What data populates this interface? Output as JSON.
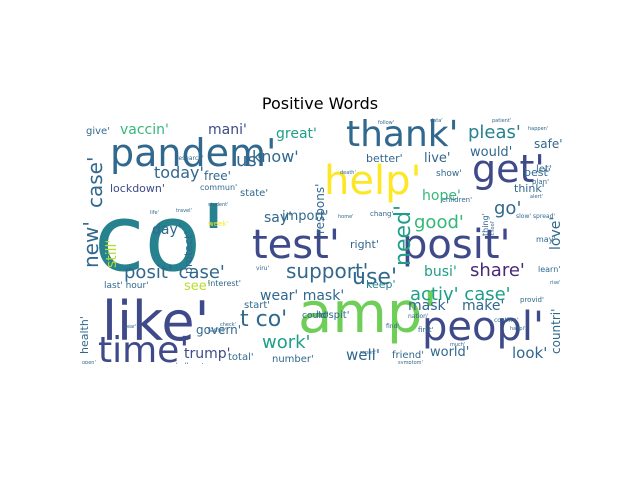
{
  "title": "Positive Words",
  "chart_data": {
    "type": "wordcloud",
    "title": "Positive Words",
    "background": "#ffffff",
    "colormap": "viridis",
    "words": [
      {
        "text": "co'",
        "weight": 100
      },
      {
        "text": "amp'",
        "weight": 62
      },
      {
        "text": "like'",
        "weight": 58
      },
      {
        "text": "posit'",
        "weight": 48
      },
      {
        "text": "test'",
        "weight": 46
      },
      {
        "text": "peopl'",
        "weight": 44
      },
      {
        "text": "help'",
        "weight": 42
      },
      {
        "text": "thank'",
        "weight": 42
      },
      {
        "text": "get'",
        "weight": 40
      },
      {
        "text": "pandem'",
        "weight": 40
      },
      {
        "text": "time'",
        "weight": 38
      },
      {
        "text": "use'",
        "weight": 26
      },
      {
        "text": "t co'",
        "weight": 26
      },
      {
        "text": "support'",
        "weight": 24
      },
      {
        "text": "need'",
        "weight": 24
      },
      {
        "text": "new'",
        "weight": 22
      },
      {
        "text": "case'",
        "weight": 22
      },
      {
        "text": "posit' case'",
        "weight": 22
      },
      {
        "text": "activ' case'",
        "weight": 22
      },
      {
        "text": "share'",
        "weight": 20
      },
      {
        "text": "good'",
        "weight": 20
      },
      {
        "text": "pleas'",
        "weight": 20
      },
      {
        "text": "work'",
        "weight": 20
      },
      {
        "text": "us'",
        "weight": 20
      },
      {
        "text": "go'",
        "weight": 18
      },
      {
        "text": "know'",
        "weight": 18
      },
      {
        "text": "today'",
        "weight": 18
      },
      {
        "text": "make'",
        "weight": 16
      },
      {
        "text": "mask'",
        "weight": 16
      },
      {
        "text": "look'",
        "weight": 16
      },
      {
        "text": "wear' mask'",
        "weight": 16
      },
      {
        "text": "well'",
        "weight": 16
      },
      {
        "text": "great'",
        "weight": 16
      },
      {
        "text": "vaccin'",
        "weight": 16
      },
      {
        "text": "mani'",
        "weight": 16
      },
      {
        "text": "hope'",
        "weight": 16
      },
      {
        "text": "busi'",
        "weight": 16
      },
      {
        "text": "say'",
        "weight": 16
      },
      {
        "text": "still'",
        "weight": 15
      },
      {
        "text": "trump'",
        "weight": 15
      },
      {
        "text": "would'",
        "weight": 15
      },
      {
        "text": "import'",
        "weight": 15
      },
      {
        "text": "day'",
        "weight": 15
      },
      {
        "text": "live'",
        "weight": 14
      },
      {
        "text": "world'",
        "weight": 14
      },
      {
        "text": "love'",
        "weight": 14
      },
      {
        "text": "countri'",
        "weight": 13
      },
      {
        "text": "safe'",
        "weight": 13
      },
      {
        "text": "see'",
        "weight": 13
      },
      {
        "text": "respons'",
        "weight": 12
      },
      {
        "text": "free'",
        "weight": 12
      },
      {
        "text": "govern'",
        "weight": 12
      },
      {
        "text": "better'",
        "weight": 12
      },
      {
        "text": "lockdown'",
        "weight": 11
      },
      {
        "text": "keep'",
        "weight": 11
      },
      {
        "text": "protect'",
        "weight": 11
      },
      {
        "text": "right'",
        "weight": 11
      },
      {
        "text": "think'",
        "weight": 11
      },
      {
        "text": "best'",
        "weight": 10
      },
      {
        "text": "let'",
        "weight": 10
      },
      {
        "text": "start'",
        "weight": 10
      },
      {
        "text": "health'",
        "weight": 10
      },
      {
        "text": "number'",
        "weight": 10
      },
      {
        "text": "total'",
        "weight": 10
      },
      {
        "text": "hospit'",
        "weight": 10
      },
      {
        "text": "friend'",
        "weight": 9
      },
      {
        "text": "state'",
        "weight": 9
      },
      {
        "text": "give'",
        "weight": 9
      },
      {
        "text": "last' hour'",
        "weight": 9
      },
      {
        "text": "could'",
        "weight": 9
      },
      {
        "text": "show'",
        "weight": 8
      },
      {
        "text": "commun'",
        "weight": 8
      },
      {
        "text": "thing'",
        "weight": 8
      },
      {
        "text": "may'",
        "weight": 8
      },
      {
        "text": "learn'",
        "weight": 8
      },
      {
        "text": "interest'",
        "weight": 8
      },
      {
        "text": "challeng'",
        "weight": 7
      },
      {
        "text": "children'",
        "weight": 7
      },
      {
        "text": "chang'",
        "weight": 7
      },
      {
        "text": "plan'",
        "weight": 7
      },
      {
        "text": "week'",
        "weight": 7
      },
      {
        "text": "first'",
        "weight": 7
      },
      {
        "text": "provid'",
        "weight": 7
      },
      {
        "text": "continu'",
        "weight": 6
      },
      {
        "text": "slow' spread'",
        "weight": 6
      },
      {
        "text": "research'",
        "weight": 6
      },
      {
        "text": "famili'",
        "weight": 6
      },
      {
        "text": "nation'",
        "weight": 6
      },
      {
        "text": "find'",
        "weight": 6
      },
      {
        "text": "viru'",
        "weight": 6
      },
      {
        "text": "student'",
        "weight": 5
      },
      {
        "text": "follow'",
        "weight": 5
      },
      {
        "text": "data'",
        "weight": 5
      },
      {
        "text": "patient'",
        "weight": 5
      },
      {
        "text": "happen'",
        "weight": 5
      },
      {
        "text": "check'",
        "weight": 5
      },
      {
        "text": "year'",
        "weight": 5
      },
      {
        "text": "travel'",
        "weight": 5
      },
      {
        "text": "life'",
        "weight": 5
      },
      {
        "text": "home'",
        "weight": 5
      },
      {
        "text": "alert'",
        "weight": 5
      },
      {
        "text": "report'",
        "weight": 5
      },
      {
        "text": "school'",
        "weight": 5
      },
      {
        "text": "happi'",
        "weight": 5
      },
      {
        "text": "much'",
        "weight": 5
      },
      {
        "text": "death'",
        "weight": 5
      },
      {
        "text": "symptom'",
        "weight": 5
      },
      {
        "text": "open'",
        "weight": 5
      },
      {
        "text": "rise'",
        "weight": 5
      }
    ]
  }
}
